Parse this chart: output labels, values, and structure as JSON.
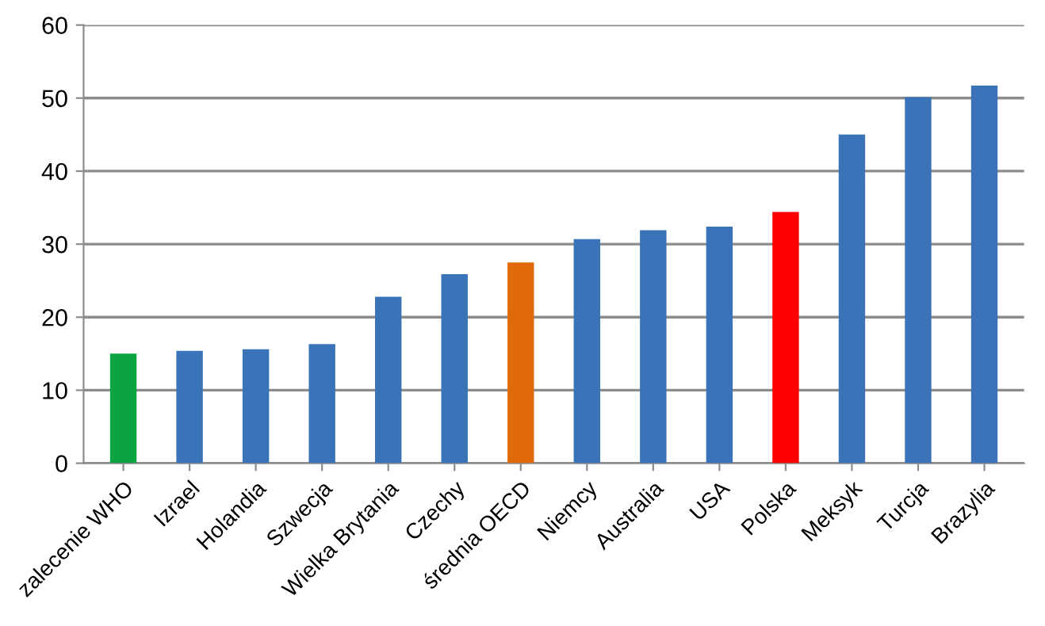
{
  "chart_data": {
    "type": "bar",
    "categories": [
      "zalecenie WHO",
      "Izrael",
      "Holandia",
      "Szwecja",
      "Wielka Brytania",
      "Czechy",
      "średnia OECD",
      "Niemcy",
      "Australia",
      "USA",
      "Polska",
      "Meksyk",
      "Turcja",
      "Brazylia"
    ],
    "values": [
      15,
      15.4,
      15.6,
      16.3,
      22.8,
      25.9,
      27.5,
      30.7,
      31.9,
      32.4,
      34.4,
      45,
      50.1,
      51.7
    ],
    "colors": [
      "#0aa540",
      "#3a73b8",
      "#3a73b8",
      "#3a73b8",
      "#3a73b8",
      "#3a73b8",
      "#e06a0a",
      "#3a73b8",
      "#3a73b8",
      "#3a73b8",
      "#ff0000",
      "#3a73b8",
      "#3a73b8",
      "#3a73b8"
    ],
    "ylim": [
      0,
      60
    ],
    "yticks": [
      0,
      10,
      20,
      30,
      40,
      50,
      60
    ],
    "grid": "y"
  }
}
